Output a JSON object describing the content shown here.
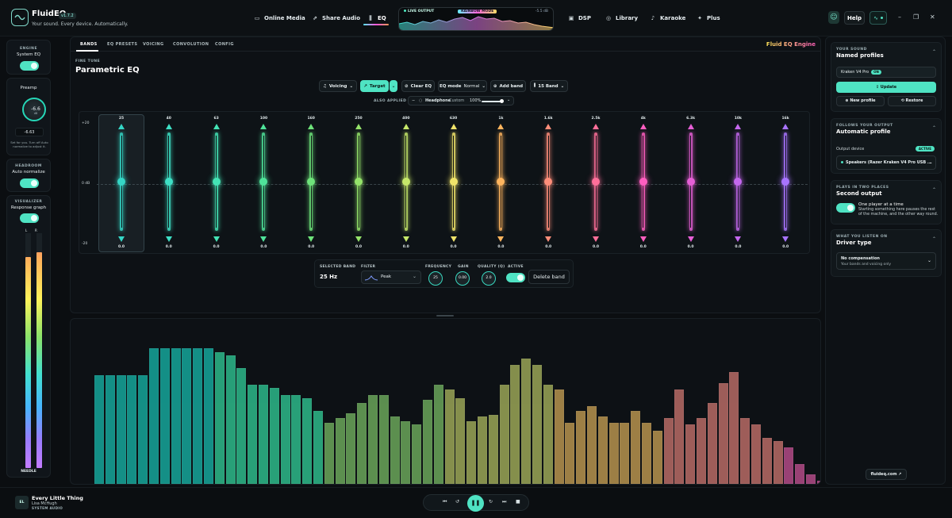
{
  "app": {
    "name": "FluidEQ",
    "version": "v1.7.2",
    "tagline": "Your sound. Every device. Automatically."
  },
  "nav": [
    {
      "label": "Online Media",
      "icon": "monitor-icon"
    },
    {
      "label": "Share Audio",
      "icon": "share-icon"
    },
    {
      "label": "EQ",
      "icon": "sliders-icon"
    },
    {
      "label": "DSP",
      "icon": "chip-icon"
    },
    {
      "label": "Library",
      "icon": "disc-icon"
    },
    {
      "label": "Karaoke",
      "icon": "mic-icon"
    },
    {
      "label": "Plus",
      "icon": "sparkle-icon"
    }
  ],
  "live": {
    "label": "LIVE OUTPUT",
    "mode": "RAINBOW MODE",
    "db": "-5.5 dB"
  },
  "header_right": {
    "help": "Help"
  },
  "left": {
    "engine": {
      "head": "ENGINE",
      "sub": "System EQ",
      "on": true
    },
    "preamp": {
      "head": "Preamp",
      "knob": "-6.6",
      "unit": "dB",
      "value": "-6.63",
      "note": "Set for you. Turn off Auto normalize to adjust it."
    },
    "headroom": {
      "head": "HEADROOM",
      "sub": "Auto normalize",
      "on": true
    },
    "visualizer": {
      "head": "VISUALIZER",
      "sub": "Response graph",
      "on": true,
      "l": "L",
      "r": "R",
      "mode": "NEEDLE",
      "l_level": 0.9,
      "r_level": 0.92
    }
  },
  "eq": {
    "tabs": [
      "BANDS",
      "EQ PRESETS",
      "VOICING",
      "CONVOLUTION",
      "CONFIG"
    ],
    "brand": "Fluid EQ Engine",
    "section": "FINE TUNE",
    "title": "Parametric EQ",
    "toolbar": {
      "voicing": "Voicing",
      "target": "Target",
      "clear": "Clear EQ",
      "mode_label": "EQ mode",
      "mode_value": "Normal",
      "add": "Add band",
      "bands": "15 Band"
    },
    "also": {
      "label": "ALSO APPLIED",
      "name": "Headphone",
      "preset": "Custom",
      "pct": "100%"
    },
    "axis": {
      "top": "+20",
      "mid": "0 dB",
      "bot": "-20"
    },
    "bands": [
      {
        "freq": "25",
        "val": "0.0",
        "color": "#35d6c6"
      },
      {
        "freq": "40",
        "val": "0.0",
        "color": "#3ee0c5"
      },
      {
        "freq": "63",
        "val": "0.0",
        "color": "#44e3b5"
      },
      {
        "freq": "100",
        "val": "0.0",
        "color": "#4fe39a"
      },
      {
        "freq": "160",
        "val": "0.0",
        "color": "#6ee37a"
      },
      {
        "freq": "250",
        "val": "0.0",
        "color": "#95e36a"
      },
      {
        "freq": "400",
        "val": "0.0",
        "color": "#c6e86a"
      },
      {
        "freq": "630",
        "val": "0.0",
        "color": "#f0e36a"
      },
      {
        "freq": "1k",
        "val": "0.0",
        "color": "#ffb55e"
      },
      {
        "freq": "1.6k",
        "val": "0.0",
        "color": "#ff8e7a"
      },
      {
        "freq": "2.5k",
        "val": "0.0",
        "color": "#ff6f9a"
      },
      {
        "freq": "4k",
        "val": "0.0",
        "color": "#ff5ec0"
      },
      {
        "freq": "6.3k",
        "val": "0.0",
        "color": "#e65fd6"
      },
      {
        "freq": "10k",
        "val": "0.0",
        "color": "#c468ee"
      },
      {
        "freq": "16k",
        "val": "0.0",
        "color": "#a874ff"
      }
    ],
    "selected": {
      "label_band": "SELECTED BAND",
      "band": "25 Hz",
      "label_filter": "FILTER",
      "filter": "Peak",
      "label_freq": "FREQUENCY",
      "freq": "25",
      "label_gain": "GAIN",
      "gain": "0.00",
      "label_q": "QUALITY (Q)",
      "q": "2.0",
      "label_active": "ACTIVE",
      "delete": "Delete band"
    }
  },
  "spectrum": {
    "values": [
      0.66,
      0.66,
      0.66,
      0.66,
      0.66,
      0.82,
      0.82,
      0.82,
      0.82,
      0.82,
      0.82,
      0.8,
      0.78,
      0.7,
      0.6,
      0.6,
      0.58,
      0.54,
      0.54,
      0.52,
      0.44,
      0.37,
      0.4,
      0.43,
      0.49,
      0.54,
      0.54,
      0.41,
      0.38,
      0.36,
      0.51,
      0.6,
      0.57,
      0.52,
      0.38,
      0.41,
      0.42,
      0.6,
      0.72,
      0.76,
      0.72,
      0.6,
      0.57,
      0.37,
      0.44,
      0.47,
      0.41,
      0.37,
      0.37,
      0.44,
      0.37,
      0.32,
      0.4,
      0.57,
      0.36,
      0.4,
      0.49,
      0.61,
      0.68,
      0.4,
      0.36,
      0.28,
      0.26,
      0.22,
      0.12,
      0.06,
      0.02,
      0.03,
      0.04,
      0.05,
      0.02,
      0.01,
      0.01,
      0.01,
      0.01,
      0.01,
      0.01,
      0.01,
      0.01,
      0.01,
      0.01,
      0.01,
      0.01
    ],
    "colors": [
      "#16a69a",
      "#2db98a",
      "#6aa55a",
      "#9aa556",
      "#b7934e",
      "#b86b66",
      "#b24a86",
      "#8a3a8a"
    ]
  },
  "right": {
    "sound": {
      "head": "YOUR SOUND",
      "title": "Named profiles",
      "profile": "Kraken V4 Pro",
      "on": "ON",
      "update": "Update",
      "new": "New profile",
      "restore": "Restore"
    },
    "follow": {
      "head": "FOLLOWS YOUR OUTPUT",
      "title": "Automatic profile",
      "out_label": "Output device",
      "active": "ACTIVE",
      "device": "Speakers (Razer Kraken V4 Pro USB ..."
    },
    "second": {
      "head": "PLAYS IN TWO PLACES",
      "title": "Second output",
      "t1": "One player at a time",
      "t2": "Starting something here pauses the rest of the machine, and the other way round."
    },
    "driver": {
      "head": "WHAT YOU LISTEN ON",
      "title": "Driver type",
      "opt": "No compensation",
      "opt_sub": "Your bands and voicing only"
    },
    "link": "fluideq.com"
  },
  "player": {
    "art": "EL",
    "title": "Every Little Thing",
    "artist": "Lisa McHugh",
    "source": "SYSTEM AUDIO"
  }
}
